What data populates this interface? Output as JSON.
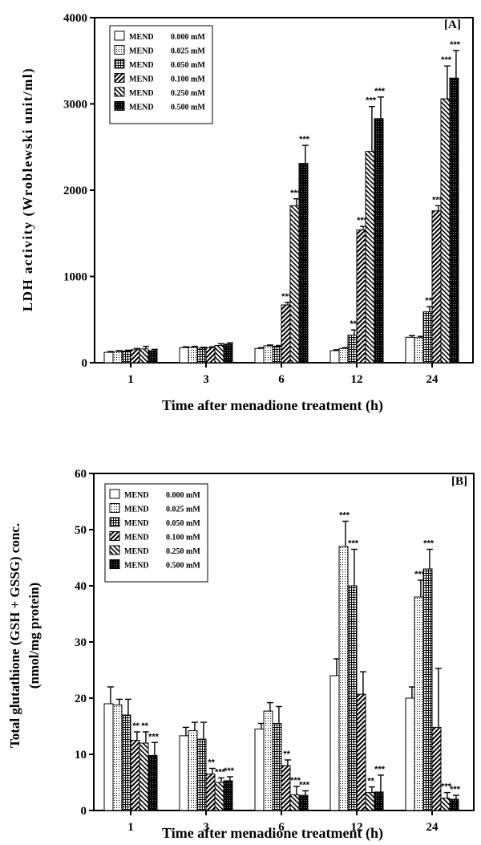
{
  "chart_data": [
    {
      "type": "bar",
      "panel_label": "[A]",
      "xlabel": "Time after menadione treatment (h)",
      "ylabel": "LDH activity (Wroblewski unit/ml)",
      "ylim": [
        0,
        4000
      ],
      "yticks": [
        "0",
        "1000",
        "2000",
        "3000",
        "4000"
      ],
      "categories": [
        "1",
        "3",
        "6",
        "12",
        "24"
      ],
      "legend_position": "top-left",
      "series": [
        {
          "name": "MEND 0.000 mM",
          "pattern": "white",
          "values": [
            120,
            175,
            165,
            140,
            295
          ],
          "errors": [
            10,
            10,
            10,
            10,
            20
          ],
          "sig": [
            "",
            "",
            "",
            "",
            ""
          ]
        },
        {
          "name": "MEND 0.025 mM",
          "pattern": "dots",
          "values": [
            130,
            180,
            195,
            165,
            290
          ],
          "errors": [
            10,
            10,
            10,
            10,
            15
          ],
          "sig": [
            "",
            "",
            "",
            "",
            ""
          ]
        },
        {
          "name": "MEND 0.050 mM",
          "pattern": "grid",
          "values": [
            135,
            170,
            190,
            320,
            590
          ],
          "errors": [
            10,
            10,
            10,
            60,
            60
          ],
          "sig": [
            "",
            "",
            "",
            "**",
            "**"
          ]
        },
        {
          "name": "MEND 0.100 mM",
          "pattern": "diag",
          "values": [
            150,
            175,
            670,
            1540,
            1760
          ],
          "errors": [
            15,
            10,
            30,
            40,
            60
          ],
          "sig": [
            "",
            "",
            "***",
            "***",
            "***"
          ]
        },
        {
          "name": "MEND 0.250 mM",
          "pattern": "anti",
          "values": [
            160,
            200,
            1820,
            2450,
            3060
          ],
          "errors": [
            30,
            20,
            80,
            520,
            380
          ],
          "sig": [
            "",
            "",
            "***",
            "***",
            "***"
          ]
        },
        {
          "name": "MEND 0.500 mM",
          "pattern": "black",
          "values": [
            140,
            215,
            2310,
            2830,
            3300
          ],
          "errors": [
            15,
            15,
            210,
            250,
            320
          ],
          "sig": [
            "",
            "",
            "***",
            "***",
            "***"
          ]
        }
      ]
    },
    {
      "type": "bar",
      "panel_label": "[B]",
      "xlabel": "Time after menadione treatment (h)",
      "ylabel_line1": "Total glutathione (GSH + GSSG) conc.",
      "ylabel_line2": "(nmol/mg protein)",
      "ylim": [
        0,
        60
      ],
      "yticks": [
        "0",
        "10",
        "20",
        "30",
        "40",
        "50",
        "60"
      ],
      "categories": [
        "1",
        "3",
        "6",
        "12",
        "24"
      ],
      "legend_position": "top-left",
      "series": [
        {
          "name": "MEND 0.000 mM",
          "pattern": "white",
          "values": [
            19,
            13.3,
            14.5,
            24,
            20
          ],
          "errors": [
            3,
            1.5,
            1,
            3,
            2
          ],
          "sig": [
            "",
            "",
            "",
            "",
            ""
          ]
        },
        {
          "name": "MEND 0.025 mM",
          "pattern": "dots",
          "values": [
            18.8,
            14.2,
            17.7,
            47,
            38
          ],
          "errors": [
            1,
            1.5,
            1.5,
            4.5,
            3
          ],
          "sig": [
            "",
            "",
            "",
            "***",
            "***"
          ]
        },
        {
          "name": "MEND 0.050 mM",
          "pattern": "grid",
          "values": [
            17,
            12.7,
            15.5,
            40,
            43
          ],
          "errors": [
            2.8,
            3,
            3,
            6.5,
            3.5
          ],
          "sig": [
            "",
            "",
            "",
            "***",
            "***"
          ]
        },
        {
          "name": "MEND 0.100 mM",
          "pattern": "diag",
          "values": [
            12.5,
            6.5,
            8,
            20.7,
            14.8
          ],
          "errors": [
            1.5,
            1,
            1,
            4,
            10.5
          ],
          "sig": [
            "**",
            "**",
            "**",
            "",
            ""
          ]
        },
        {
          "name": "MEND 0.250 mM",
          "pattern": "anti",
          "values": [
            12,
            5,
            2.8,
            3.2,
            2.2
          ],
          "errors": [
            2,
            0.8,
            1.5,
            1,
            1
          ],
          "sig": [
            "**",
            "***",
            "***",
            "**",
            "***"
          ]
        },
        {
          "name": "MEND 0.500 mM",
          "pattern": "black",
          "values": [
            9.8,
            5.3,
            2.7,
            3.3,
            2
          ],
          "errors": [
            2.3,
            0.7,
            0.8,
            3,
            0.7
          ],
          "sig": [
            "***",
            "***",
            "***",
            "***",
            "***"
          ]
        }
      ]
    }
  ]
}
